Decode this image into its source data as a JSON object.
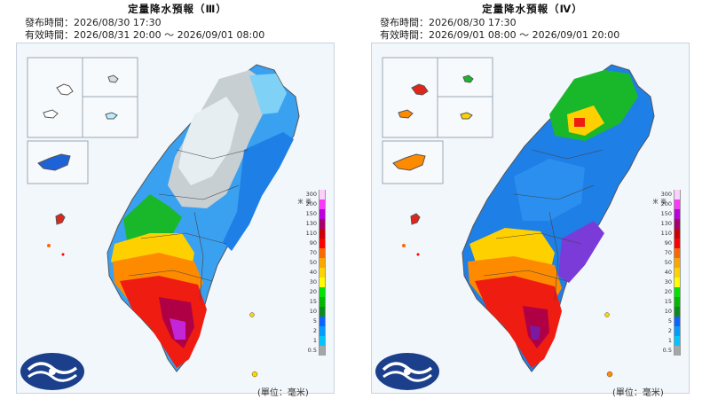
{
  "panels": [
    {
      "title": "定量降水預報（Ⅲ）",
      "issued": "發布時間：2026/08/30 17:30",
      "valid": "有效時間：2026/08/31 20:00 ～ 2026/09/01 08:00"
    },
    {
      "title": "定量降水預報（Ⅳ）",
      "issued": "發布時間：2026/08/30 17:30",
      "valid": "有效時間：2026/09/01 08:00 ～ 2026/09/01 20:00"
    }
  ],
  "legend": {
    "unit_label": "(單位：毫米)",
    "unit_short": "毫米",
    "levels": [
      "300",
      "200",
      "150",
      "130",
      "110",
      "90",
      "70",
      "50",
      "40",
      "30",
      "20",
      "15",
      "10",
      "5",
      "2",
      "1",
      "0.5"
    ],
    "colors": [
      "#fdd0fb",
      "#fe38fb",
      "#ba00dc",
      "#a5006c",
      "#cc0004",
      "#fe0000",
      "#fe6700",
      "#fea600",
      "#fed300",
      "#fffe00",
      "#00e400",
      "#01ba00",
      "#0d8a1c",
      "#0c63ff",
      "#009dfe",
      "#02c5ff",
      "#a4a7a6"
    ]
  },
  "colors": {
    "land_outline": "#555555",
    "sea": "#f2f7fb",
    "logo_blue": "#1b3f8b"
  }
}
